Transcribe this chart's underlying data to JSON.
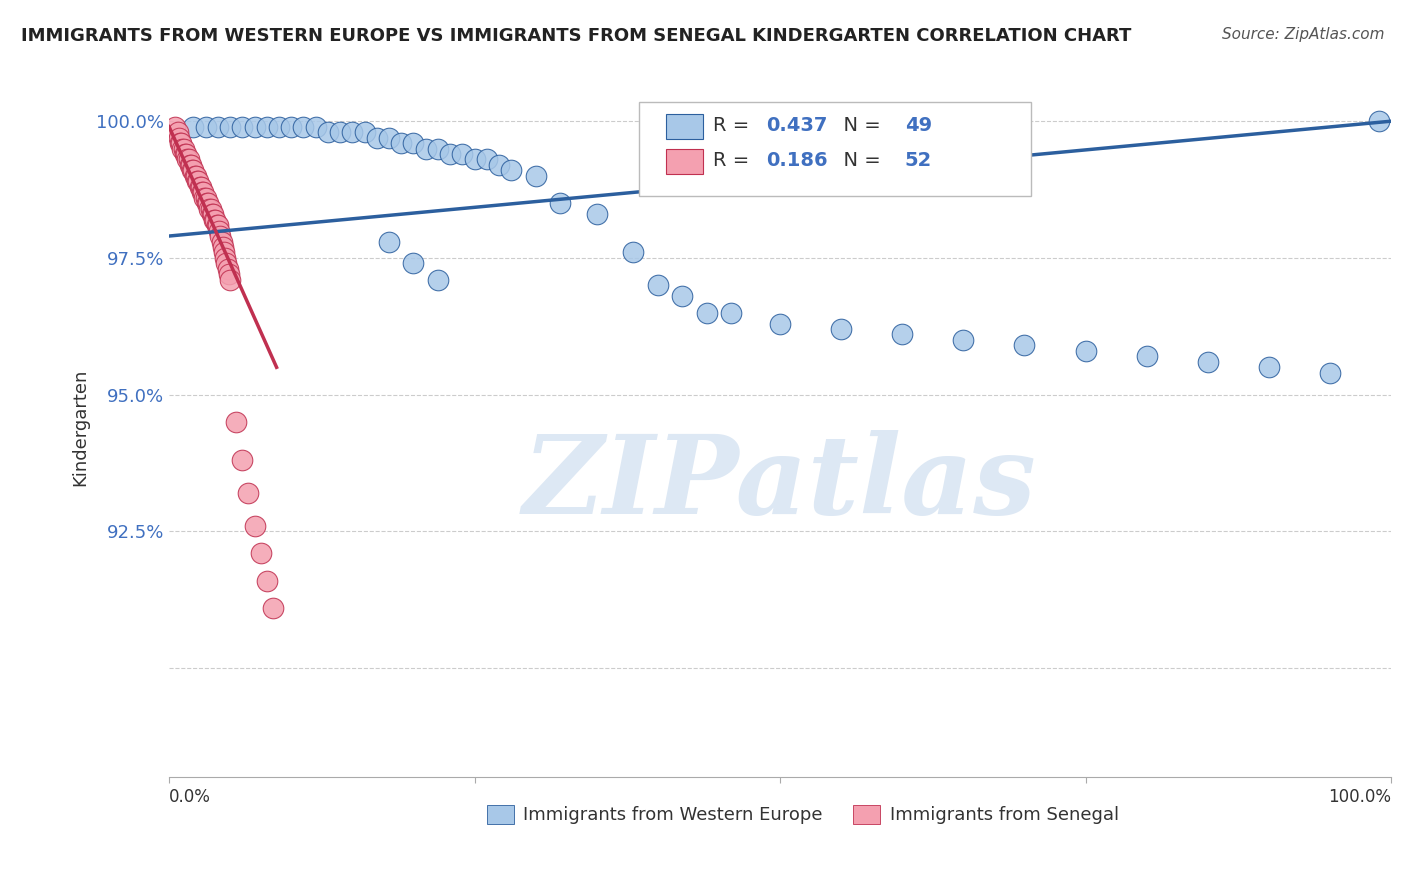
{
  "title": "IMMIGRANTS FROM WESTERN EUROPE VS IMMIGRANTS FROM SENEGAL KINDERGARTEN CORRELATION CHART",
  "source": "Source: ZipAtlas.com",
  "ylabel": "Kindergarten",
  "legend_label1": "Immigrants from Western Europe",
  "legend_label2": "Immigrants from Senegal",
  "R1": 0.437,
  "N1": 49,
  "R2": 0.186,
  "N2": 52,
  "color1": "#a8c8e8",
  "color2": "#f4a0b0",
  "line_color1": "#2c5f9e",
  "line_color2": "#c03050",
  "watermark": "ZIPatlas",
  "watermark_color": "#dde8f4",
  "blue_x": [
    0.02,
    0.03,
    0.04,
    0.05,
    0.06,
    0.07,
    0.08,
    0.09,
    0.1,
    0.11,
    0.12,
    0.13,
    0.14,
    0.15,
    0.16,
    0.17,
    0.18,
    0.19,
    0.2,
    0.21,
    0.22,
    0.23,
    0.24,
    0.25,
    0.26,
    0.27,
    0.28,
    0.3,
    0.32,
    0.35,
    0.38,
    0.4,
    0.42,
    0.44,
    0.46,
    0.18,
    0.2,
    0.22,
    0.5,
    0.55,
    0.6,
    0.65,
    0.7,
    0.75,
    0.8,
    0.85,
    0.9,
    0.95,
    0.99
  ],
  "blue_y": [
    0.999,
    0.999,
    0.999,
    0.999,
    0.999,
    0.999,
    0.999,
    0.999,
    0.999,
    0.999,
    0.999,
    0.998,
    0.998,
    0.998,
    0.998,
    0.997,
    0.997,
    0.996,
    0.996,
    0.995,
    0.995,
    0.994,
    0.994,
    0.993,
    0.993,
    0.992,
    0.991,
    0.99,
    0.985,
    0.983,
    0.976,
    0.97,
    0.968,
    0.965,
    0.965,
    0.978,
    0.974,
    0.971,
    0.963,
    0.962,
    0.961,
    0.96,
    0.959,
    0.958,
    0.957,
    0.956,
    0.955,
    0.954,
    1.0
  ],
  "pink_x": [
    0.005,
    0.007,
    0.008,
    0.009,
    0.01,
    0.011,
    0.012,
    0.013,
    0.014,
    0.015,
    0.016,
    0.017,
    0.018,
    0.019,
    0.02,
    0.021,
    0.022,
    0.023,
    0.024,
    0.025,
    0.026,
    0.027,
    0.028,
    0.029,
    0.03,
    0.031,
    0.032,
    0.033,
    0.034,
    0.035,
    0.036,
    0.037,
    0.038,
    0.039,
    0.04,
    0.041,
    0.042,
    0.043,
    0.044,
    0.045,
    0.046,
    0.047,
    0.048,
    0.049,
    0.05,
    0.055,
    0.06,
    0.065,
    0.07,
    0.075,
    0.08,
    0.085
  ],
  "pink_y": [
    0.999,
    0.998,
    0.997,
    0.996,
    0.996,
    0.995,
    0.995,
    0.994,
    0.994,
    0.993,
    0.993,
    0.992,
    0.992,
    0.991,
    0.991,
    0.99,
    0.99,
    0.989,
    0.989,
    0.988,
    0.988,
    0.987,
    0.987,
    0.986,
    0.986,
    0.985,
    0.985,
    0.984,
    0.984,
    0.983,
    0.983,
    0.982,
    0.982,
    0.981,
    0.981,
    0.98,
    0.979,
    0.978,
    0.977,
    0.976,
    0.975,
    0.974,
    0.973,
    0.972,
    0.971,
    0.945,
    0.938,
    0.932,
    0.926,
    0.921,
    0.916,
    0.911
  ],
  "blue_trend_x": [
    0.0,
    1.0
  ],
  "blue_trend_y": [
    0.979,
    1.0
  ],
  "pink_trend_x": [
    0.0,
    0.088
  ],
  "pink_trend_y": [
    0.999,
    0.955
  ],
  "xlim": [
    0.0,
    1.0
  ],
  "ylim": [
    0.88,
    1.008
  ],
  "ytick_vals": [
    0.9,
    0.925,
    0.95,
    0.975,
    1.0
  ],
  "ytick_labels": [
    "",
    "92.5%",
    "95.0%",
    "97.5%",
    "100.0%"
  ]
}
